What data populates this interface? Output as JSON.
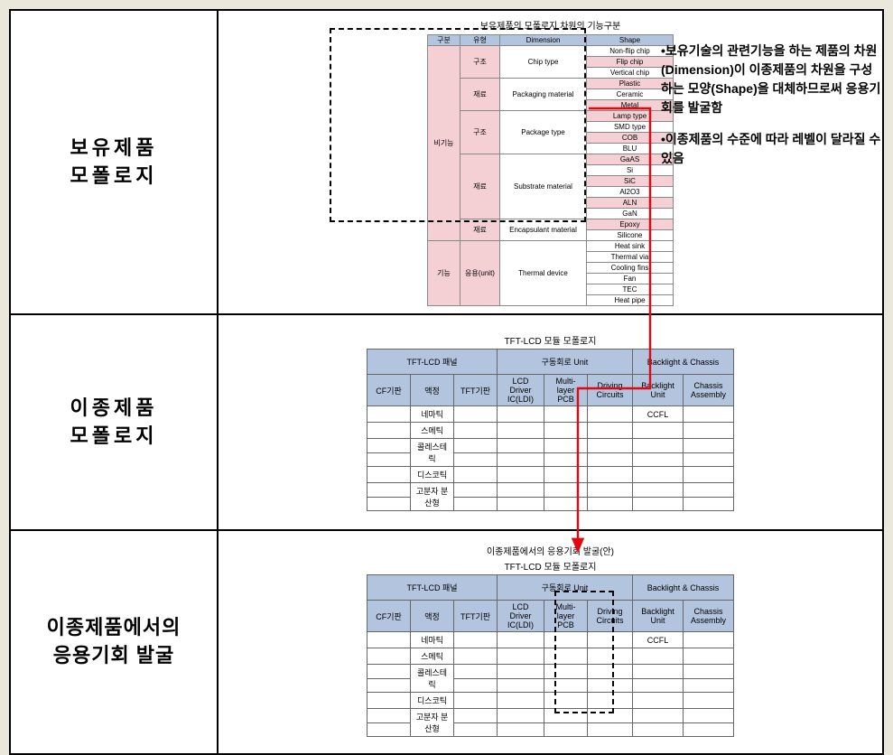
{
  "colors": {
    "header_bg": "#b3c4de",
    "pink_bg": "#f4d0d4",
    "page_bg": "#eae7db",
    "cell_bg": "#ffffff",
    "border": "#000000",
    "arrow": "#e30613"
  },
  "labels": {
    "row1_line1": "보유제품",
    "row1_line2": "모폴로지",
    "row2_line1": "이종제품",
    "row2_line2": "모폴로지",
    "row3_line1": "이종제품에서의",
    "row3_line2": "응용기회 발굴"
  },
  "bullets": {
    "b1": "•보유기술의 관련기능을 하는 제품의 차원(Dimension)이 이종제품의 차원을 구성하는 모양(Shape)을 대체하므로써 응용기회를 발굴함",
    "b2": "•이종제품의 수준에 따라 레벨이 달라질 수 있음"
  },
  "table1": {
    "title": "보유제품의 모폴로지 차원의 기능구분",
    "headers": [
      "구분",
      "유형",
      "Dimension",
      "Shape"
    ],
    "col1_1": "비기능",
    "col1_2": "기능",
    "col2_last": "응용(unit)",
    "groups": [
      {
        "yuhyeong": "구조",
        "dimension": "Chip type",
        "shapes": [
          "Non-flip chip",
          "Flip chip",
          "Vertical chip"
        ],
        "pink_idx": [
          1
        ]
      },
      {
        "yuhyeong": "재료",
        "dimension": "Packaging material",
        "shapes": [
          "Plastic",
          "Ceramic",
          "Metal"
        ],
        "pink_idx": [
          0,
          2
        ]
      },
      {
        "yuhyeong": "구조",
        "dimension": "Package type",
        "shapes": [
          "Lamp type",
          "SMD type",
          "COB",
          "BLU"
        ],
        "pink_idx": [
          0,
          2
        ]
      },
      {
        "yuhyeong": "재료",
        "dimension": "Substrate material",
        "shapes": [
          "GaAS",
          "Si",
          "SiC",
          "Al2O3",
          "ALN",
          "GaN"
        ],
        "pink_idx": [
          0,
          2,
          4
        ]
      },
      {
        "yuhyeong": "재료",
        "dimension": "Encapsulant material",
        "shapes": [
          "Epoxy",
          "Silicone"
        ],
        "pink_idx": [
          0
        ]
      }
    ],
    "thermal": {
      "dimension": "Thermal device",
      "shapes": [
        "Heat sink",
        "Thermal via",
        "Cooling fins",
        "Fan",
        "TEC",
        "Heat pipe"
      ]
    }
  },
  "table2": {
    "title": "TFT-LCD 모듈 모폴로지",
    "groups": [
      "TFT-LCD 패널",
      "구동회로 Unit",
      "Backlight & Chassis"
    ],
    "subs": [
      "CF기판",
      "액정",
      "TFT기판",
      "LCD Driver IC(LDI)",
      "Multi-layer PCB",
      "Driving Circuits",
      "Backlight Unit",
      "Chassis Assembly"
    ],
    "rows": [
      "네마틱",
      "스메틱",
      "콜레스테릭",
      "디스코틱",
      "고분자 분산형"
    ],
    "ccfl": "CCFL"
  },
  "table3": {
    "title_line1": "이종제품에서의 응용기회 발굴(안)",
    "title_line2": "TFT-LCD 모듈 모폴로지"
  }
}
